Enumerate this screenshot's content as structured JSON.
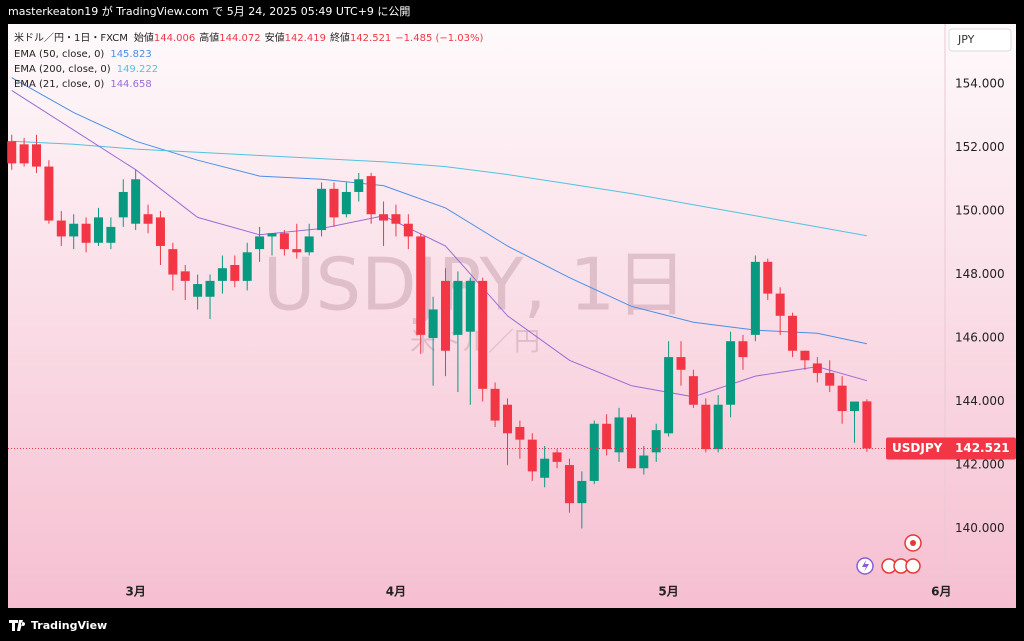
{
  "header": "masterkeaton19 が TradingView.com で 5月 24, 2025 05:49 UTC+9 に公開",
  "footer": "TradingView",
  "chart_data": {
    "type": "candlestick",
    "title": "米ドル／円・1日・FXCM",
    "ohlc_labels": [
      "始値",
      "高値",
      "安値",
      "終値"
    ],
    "change": "−1.485 (−1.03%)",
    "currency": "JPY",
    "watermark": "USDJPY, 1日",
    "watermark_sub": "米ドル／円",
    "symbol_label": "USDJPY",
    "up_color": "#089981",
    "down_color": "#f23645",
    "open": [
      152.2,
      152.1,
      152.1,
      151.4,
      149.7,
      149.2,
      149.6,
      149.0,
      149.0,
      149.8,
      149.6,
      149.9,
      149.8,
      148.8,
      148.1,
      147.3,
      147.3,
      147.8,
      148.3,
      147.8,
      148.8,
      149.2,
      149.3,
      148.8,
      148.7,
      149.4,
      150.7,
      149.9,
      150.6,
      151.1,
      149.9,
      149.9,
      149.6,
      149.2,
      146.0,
      147.8,
      146.1,
      146.2,
      147.8,
      144.4,
      143.9,
      143.2,
      142.8,
      141.6,
      142.4,
      142.0,
      140.8,
      141.5,
      143.3,
      142.4,
      143.5,
      141.9,
      142.4,
      143.0,
      145.4,
      144.8,
      143.9,
      142.5,
      143.9,
      145.9,
      146.1,
      148.4,
      147.4,
      146.7,
      145.6,
      145.2,
      144.9,
      144.5,
      143.7,
      144.006
    ],
    "high": [
      152.4,
      152.3,
      152.4,
      151.6,
      150.0,
      149.9,
      149.8,
      150.1,
      149.8,
      151.0,
      151.3,
      150.2,
      150.0,
      149.0,
      148.3,
      148.0,
      148.0,
      148.6,
      148.6,
      149.0,
      149.5,
      149.3,
      149.4,
      149.6,
      149.6,
      150.9,
      150.9,
      150.9,
      151.2,
      151.2,
      150.3,
      150.2,
      149.9,
      149.3,
      147.3,
      148.2,
      148.1,
      147.9,
      147.9,
      144.6,
      144.1,
      143.4,
      143.0,
      142.6,
      142.5,
      142.2,
      141.8,
      143.4,
      143.6,
      143.8,
      143.6,
      142.6,
      143.3,
      145.9,
      145.9,
      145.0,
      144.1,
      144.2,
      146.2,
      146.1,
      148.6,
      148.5,
      147.6,
      146.8,
      145.6,
      145.4,
      145.3,
      144.8,
      144.0,
      144.072
    ],
    "low": [
      151.3,
      151.4,
      151.2,
      149.6,
      148.9,
      148.8,
      148.7,
      148.9,
      148.8,
      149.5,
      149.4,
      149.3,
      148.3,
      147.5,
      147.2,
      146.9,
      146.6,
      147.4,
      147.6,
      147.5,
      148.4,
      148.6,
      148.6,
      148.5,
      148.6,
      149.2,
      149.5,
      149.8,
      150.3,
      149.6,
      148.9,
      149.2,
      148.8,
      145.5,
      144.5,
      144.8,
      144.3,
      143.9,
      144.0,
      143.2,
      142.0,
      142.2,
      141.5,
      141.3,
      141.9,
      140.5,
      140.0,
      141.4,
      142.3,
      142.1,
      141.9,
      141.7,
      142.1,
      142.9,
      144.5,
      143.8,
      142.4,
      142.4,
      143.5,
      145.0,
      145.9,
      147.2,
      146.1,
      145.4,
      145.0,
      144.6,
      144.3,
      143.3,
      142.7,
      142.419
    ],
    "close": [
      151.5,
      151.5,
      151.4,
      149.7,
      149.2,
      149.6,
      149.0,
      149.8,
      149.5,
      150.6,
      151.0,
      149.6,
      148.9,
      148.0,
      147.8,
      147.7,
      147.8,
      148.2,
      147.8,
      148.7,
      149.2,
      149.3,
      148.8,
      148.7,
      149.2,
      150.7,
      149.8,
      150.6,
      151.0,
      149.9,
      149.7,
      149.6,
      149.2,
      146.1,
      146.9,
      145.6,
      147.8,
      147.8,
      144.4,
      143.4,
      143.0,
      142.8,
      141.8,
      142.2,
      142.1,
      140.8,
      141.5,
      143.3,
      142.5,
      143.5,
      141.9,
      142.3,
      143.1,
      145.4,
      145.0,
      143.9,
      142.5,
      143.9,
      145.9,
      145.4,
      148.4,
      147.4,
      146.7,
      145.6,
      145.3,
      144.9,
      144.5,
      143.7,
      144.0,
      142.521
    ],
    "series": [
      {
        "name": "EMA (50, close, 0)",
        "color": "#4a8fe7",
        "x": [
          0,
          5,
          10,
          15,
          20,
          25,
          30,
          35,
          40,
          45,
          50,
          55,
          60,
          65,
          69
        ],
        "values": [
          154.2,
          153.1,
          152.2,
          151.6,
          151.1,
          151.0,
          150.8,
          150.1,
          148.9,
          147.9,
          147.0,
          146.5,
          146.25,
          146.15,
          145.823
        ]
      },
      {
        "name": "EMA (200, close, 0)",
        "color": "#4fc3e0",
        "x": [
          0,
          5,
          10,
          15,
          20,
          25,
          30,
          35,
          40,
          45,
          50,
          55,
          60,
          65,
          69
        ],
        "values": [
          152.2,
          152.1,
          151.95,
          151.85,
          151.75,
          151.65,
          151.55,
          151.4,
          151.15,
          150.85,
          150.55,
          150.2,
          149.85,
          149.5,
          149.222
        ]
      },
      {
        "name": "EMA (21, close, 0)",
        "color": "#9b6bd6",
        "x": [
          0,
          5,
          10,
          15,
          20,
          25,
          30,
          35,
          40,
          45,
          50,
          55,
          60,
          65,
          69
        ],
        "values": [
          153.8,
          152.55,
          151.3,
          149.8,
          149.25,
          149.45,
          149.85,
          148.9,
          146.7,
          145.3,
          144.5,
          144.15,
          144.8,
          145.1,
          144.658
        ]
      }
    ],
    "xlim": [
      -0.3,
      75.3
    ],
    "xticks": [
      {
        "value": 10,
        "label": "3月"
      },
      {
        "value": 31,
        "label": "4月"
      },
      {
        "value": 53,
        "label": "5月"
      },
      {
        "value": 75,
        "label": "6月"
      }
    ],
    "ylim": [
      138.38,
      155.89
    ],
    "yticks": [
      {
        "value": 140,
        "label": "140.000"
      },
      {
        "value": 142,
        "label": "142.000"
      },
      {
        "value": 144,
        "label": "144.000"
      },
      {
        "value": 146,
        "label": "146.000"
      },
      {
        "value": 148,
        "label": "148.000"
      },
      {
        "value": 150,
        "label": "150.000"
      },
      {
        "value": 152,
        "label": "152.000"
      },
      {
        "value": 154,
        "label": "154.000"
      }
    ]
  }
}
